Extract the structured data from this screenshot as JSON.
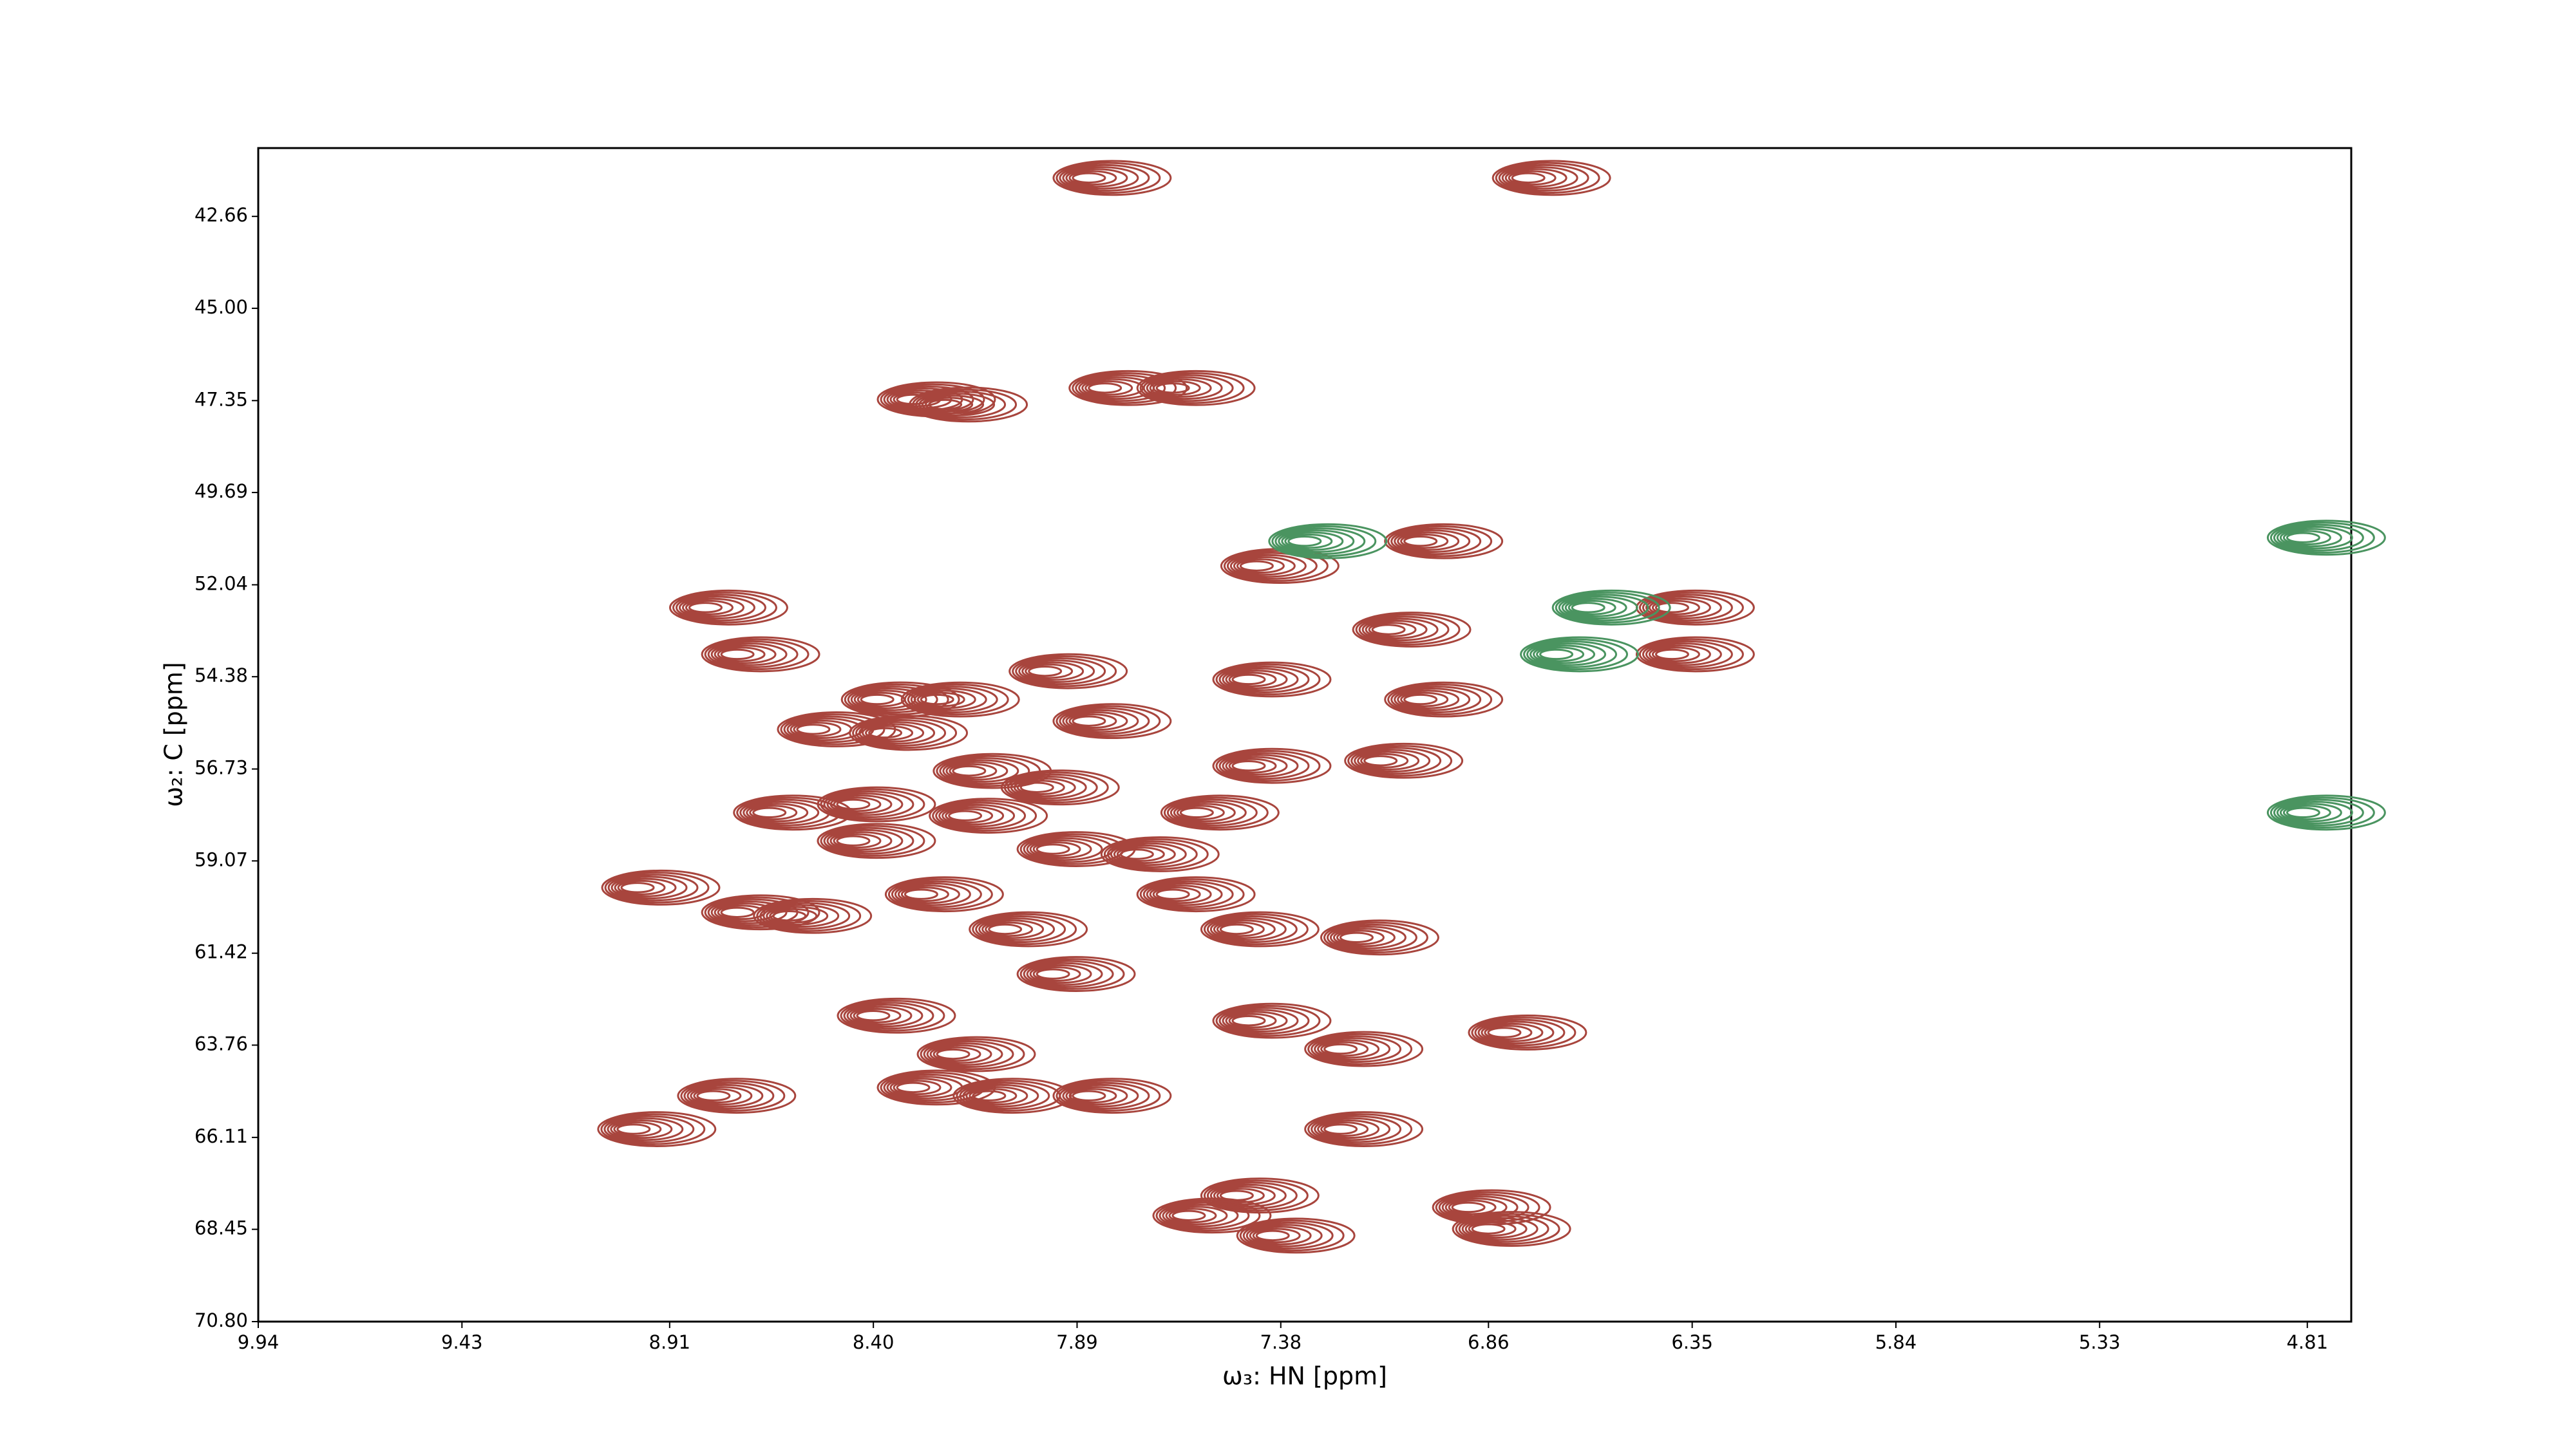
{
  "chart_data": {
    "type": "contour",
    "x_label": "ω₃: HN [ppm]",
    "y_label": "ω₂: C [ppm]",
    "xlim": [
      9.94,
      4.7
    ],
    "ylim": [
      70.8,
      40.92
    ],
    "xticks": [
      9.94,
      9.43,
      8.91,
      {
        "value": 8.4,
        "label": "8.40"
      },
      7.89,
      7.38,
      6.86,
      6.35,
      5.84,
      5.33,
      4.81
    ],
    "yticks": [
      42.66,
      {
        "value": 45,
        "label": "45.00"
      },
      47.35,
      49.69,
      52.04,
      54.38,
      56.73,
      59.07,
      61.42,
      63.76,
      66.11,
      68.45,
      {
        "value": 70.8,
        "label": "70.80"
      }
    ],
    "series": [
      {
        "color": "#a8453d",
        "x": [
          8.83,
          8.75,
          9.0,
          9.01,
          8.81,
          8.75,
          8.67,
          8.56,
          8.46,
          8.4,
          8.25,
          8.31,
          8.23,
          7.87,
          6.77,
          7.83,
          7.66,
          7.45,
          7.04,
          6.41,
          6.41,
          7.12,
          7.98,
          7.47,
          7.04,
          7.14,
          7.47,
          8.17,
          7.87,
          7.6,
          8.0,
          8.46,
          8.18,
          7.96,
          7.75,
          8.29,
          7.66,
          7.5,
          7.2,
          8.08,
          7.96,
          8.41,
          7.47,
          6.83,
          7.24,
          8.21,
          8.31,
          8.12,
          7.87,
          6.92,
          6.87,
          7.5,
          7.41,
          7.62,
          7.24,
          8.38,
          8.62
        ],
        "values": [
          52.62,
          53.81,
          59.75,
          65.9,
          65.05,
          60.38,
          57.84,
          55.72,
          57.63,
          54.96,
          54.96,
          47.32,
          47.45,
          41.68,
          41.68,
          47.03,
          47.03,
          51.56,
          50.93,
          52.62,
          53.81,
          53.18,
          54.24,
          54.45,
          54.96,
          56.52,
          56.65,
          56.78,
          55.51,
          57.84,
          57.2,
          58.56,
          57.92,
          58.77,
          58.9,
          59.92,
          59.92,
          60.81,
          61.02,
          60.81,
          61.95,
          63.01,
          63.14,
          63.44,
          63.86,
          63.99,
          64.84,
          65.05,
          65.05,
          67.89,
          68.44,
          67.59,
          68.61,
          68.1,
          65.9,
          55.81,
          60.47
        ]
      },
      {
        "color": "#4a9460",
        "x": [
          6.62,
          6.7,
          7.33,
          4.83,
          4.83
        ],
        "values": [
          52.62,
          53.81,
          50.93,
          50.84,
          57.84
        ]
      }
    ]
  }
}
